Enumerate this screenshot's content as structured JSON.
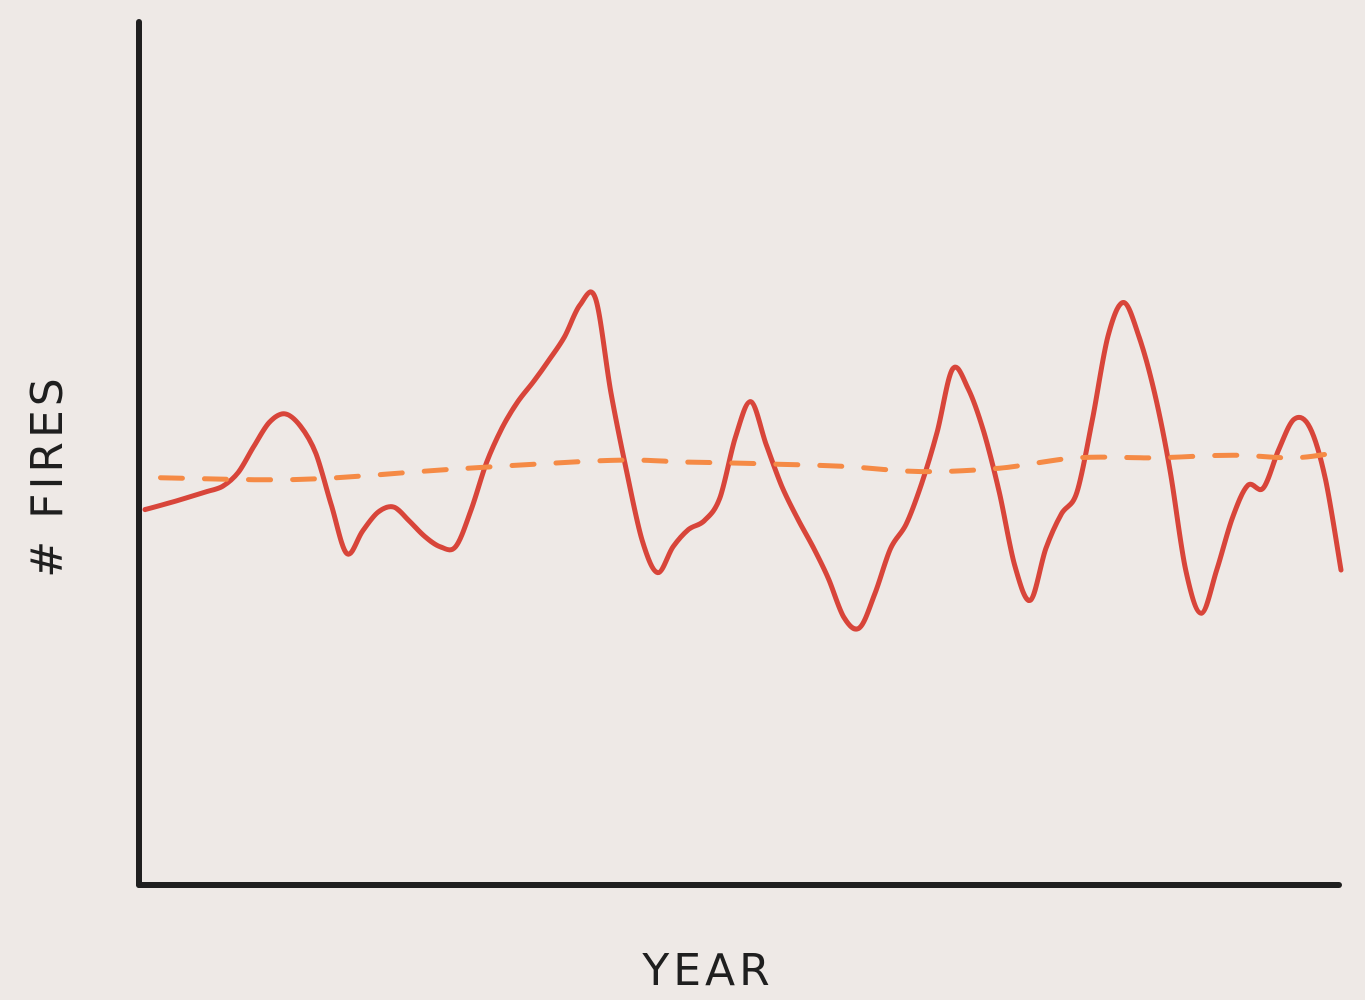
{
  "chart_data": {
    "type": "line",
    "title": "",
    "xlabel": "YEAR",
    "ylabel": "# FIRES",
    "grid": false,
    "legend": "none",
    "ylim": [
      0,
      100
    ],
    "series": [
      {
        "color": "#d8453a",
        "style": "solid",
        "points": [
          [
            0,
            43.5
          ],
          [
            2,
            44.5
          ],
          [
            4,
            45.6
          ],
          [
            5,
            46.2
          ],
          [
            6,
            47.8
          ],
          [
            7,
            50.8
          ],
          [
            8,
            53.6
          ],
          [
            9,
            54.6
          ],
          [
            10,
            53.2
          ],
          [
            11,
            50.0
          ],
          [
            12,
            44.0
          ],
          [
            13,
            38.4
          ],
          [
            14,
            41.0
          ],
          [
            15,
            43.2
          ],
          [
            16,
            43.8
          ],
          [
            17,
            42.2
          ],
          [
            18,
            40.4
          ],
          [
            19,
            39.2
          ],
          [
            20,
            39.2
          ],
          [
            21,
            43.5
          ],
          [
            22,
            49.0
          ],
          [
            23,
            53.0
          ],
          [
            24,
            56.0
          ],
          [
            25,
            58.3
          ],
          [
            26,
            60.8
          ],
          [
            27,
            63.5
          ],
          [
            28,
            67.2
          ],
          [
            29,
            68.0
          ],
          [
            30,
            57.0
          ],
          [
            31,
            48.0
          ],
          [
            32,
            40.0
          ],
          [
            33,
            36.2
          ],
          [
            34,
            39.2
          ],
          [
            35,
            41.2
          ],
          [
            36,
            42.2
          ],
          [
            37,
            44.8
          ],
          [
            38,
            51.8
          ],
          [
            39,
            56.0
          ],
          [
            40,
            51.0
          ],
          [
            41,
            46.2
          ],
          [
            42,
            42.5
          ],
          [
            43,
            39.2
          ],
          [
            44,
            35.5
          ],
          [
            45,
            31.0
          ],
          [
            46,
            29.8
          ],
          [
            47,
            33.8
          ],
          [
            48,
            39.0
          ],
          [
            49,
            41.8
          ],
          [
            50,
            46.5
          ],
          [
            51,
            52.5
          ],
          [
            52,
            59.8
          ],
          [
            53,
            57.5
          ],
          [
            54,
            52.5
          ],
          [
            55,
            45.5
          ],
          [
            56,
            37.0
          ],
          [
            57,
            33.0
          ],
          [
            58,
            39.0
          ],
          [
            59,
            43.0
          ],
          [
            60,
            45.5
          ],
          [
            61,
            54.0
          ],
          [
            62,
            63.6
          ],
          [
            63,
            67.5
          ],
          [
            64,
            63.5
          ],
          [
            65,
            57.0
          ],
          [
            66,
            48.0
          ],
          [
            67,
            36.5
          ],
          [
            68,
            31.5
          ],
          [
            69,
            36.5
          ],
          [
            70,
            42.5
          ],
          [
            71,
            46.3
          ],
          [
            72,
            46.0
          ],
          [
            73,
            50.5
          ],
          [
            74,
            54.0
          ],
          [
            75,
            53.0
          ],
          [
            76,
            47.0
          ],
          [
            77,
            36.5
          ]
        ]
      },
      {
        "color": "#f58a45",
        "style": "dashed",
        "points": [
          [
            1,
            47.2
          ],
          [
            10,
            47.0
          ],
          [
            20,
            48.2
          ],
          [
            30,
            49.2
          ],
          [
            35,
            49.0
          ],
          [
            40,
            48.8
          ],
          [
            45,
            48.5
          ],
          [
            50,
            47.9
          ],
          [
            55,
            48.3
          ],
          [
            60,
            49.5
          ],
          [
            65,
            49.5
          ],
          [
            70,
            49.8
          ],
          [
            74,
            49.5
          ],
          [
            77,
            50.2
          ]
        ]
      }
    ]
  }
}
